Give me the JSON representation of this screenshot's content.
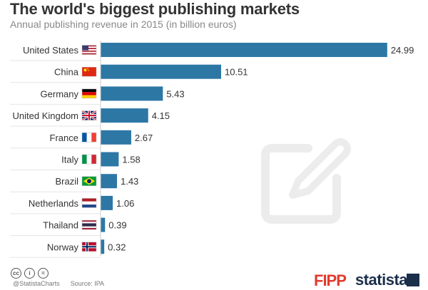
{
  "chart_data": {
    "type": "bar",
    "orientation": "horizontal",
    "title": "The world's biggest publishing markets",
    "subtitle": "Annual publishing revenue in 2015 (in billion euros)",
    "categories": [
      "United States",
      "China",
      "Germany",
      "United Kingdom",
      "France",
      "Italy",
      "Brazil",
      "Netherlands",
      "Thailand",
      "Norway"
    ],
    "values": [
      24.99,
      10.51,
      5.43,
      4.15,
      2.67,
      1.58,
      1.43,
      1.06,
      0.39,
      0.32
    ],
    "value_labels": [
      "24.99",
      "10.51",
      "5.43",
      "4.15",
      "2.67",
      "1.58",
      "1.43",
      "1.06",
      "0.39",
      "0.32"
    ],
    "flags": [
      "us-flag-icon",
      "china-flag-icon",
      "germany-flag-icon",
      "uk-flag-icon",
      "france-flag-icon",
      "italy-flag-icon",
      "brazil-flag-icon",
      "netherlands-flag-icon",
      "thailand-flag-icon",
      "norway-flag-icon"
    ],
    "xlim": [
      0,
      25
    ],
    "grid": false,
    "bar_color": "#2d77a5"
  },
  "footer": {
    "handle": "@StatistaCharts",
    "source": "Source: IPA",
    "partner_logo": "FIPP",
    "brand": "statista"
  }
}
